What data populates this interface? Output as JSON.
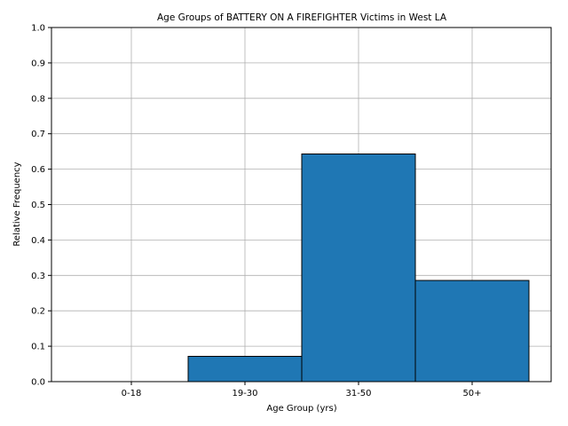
{
  "chart_data": {
    "type": "bar",
    "title": "Age Groups of BATTERY ON A FIREFIGHTER Victims in West LA",
    "xlabel": "Age Group (yrs)",
    "ylabel": "Relative Frequency",
    "categories": [
      "0-18",
      "19-30",
      "31-50",
      "50+"
    ],
    "values": [
      0.0,
      0.0714,
      0.6429,
      0.2857
    ],
    "ylim": [
      0,
      1.0
    ],
    "yticks": [
      "0.0",
      "0.1",
      "0.2",
      "0.3",
      "0.4",
      "0.5",
      "0.6",
      "0.7",
      "0.8",
      "0.9",
      "1.0"
    ],
    "grid": true,
    "bar_color": "#1f77b4",
    "edge_color": "#000000",
    "grid_color": "#b0b0b0"
  }
}
